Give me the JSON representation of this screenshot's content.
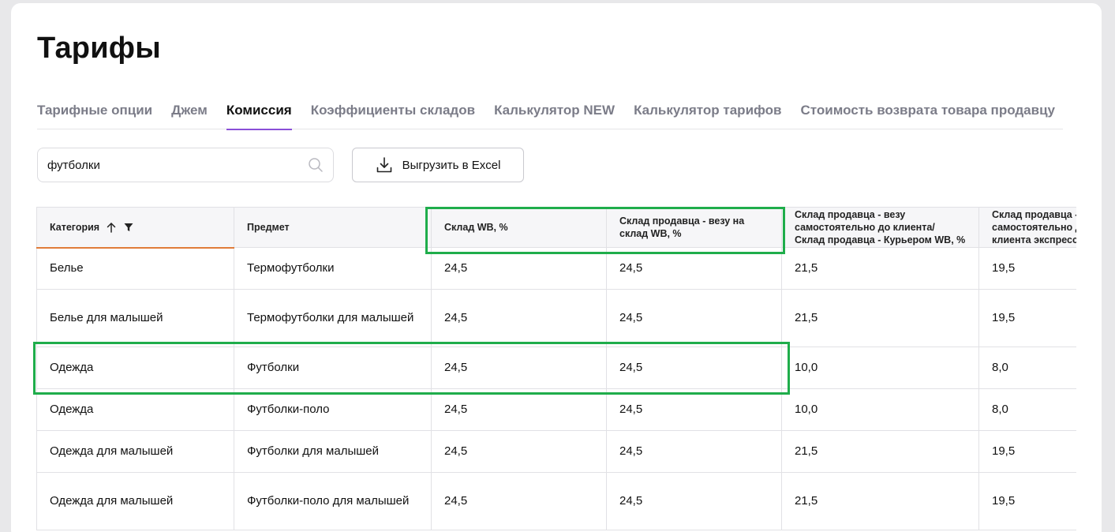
{
  "page": {
    "title": "Тарифы"
  },
  "tabs": [
    {
      "label": "Тарифные опции",
      "active": false
    },
    {
      "label": "Джем",
      "active": false
    },
    {
      "label": "Комиссия",
      "active": true
    },
    {
      "label": "Коэффициенты складов",
      "active": false
    },
    {
      "label": "Калькулятор NEW",
      "active": false
    },
    {
      "label": "Калькулятор тарифов",
      "active": false
    },
    {
      "label": "Стоимость возврата товара продавцу",
      "active": false
    }
  ],
  "search": {
    "value": "футболки",
    "icon": "search-icon"
  },
  "toolbar": {
    "export_label": "Выгрузить в Excel",
    "export_icon": "download-icon"
  },
  "accent_colors": {
    "highlight": "#1fad4b",
    "sort_underline": "#e07c3a",
    "tab_underline": "#8a4fd8"
  },
  "table": {
    "headers": [
      "Категория",
      "Предмет",
      "Склад WB, %",
      "Склад продавца - везу на склад WB, %",
      "Склад продавца - везу самостоятельно до клиента/ Склад продавца - Курьером WB, %",
      "Склад продавца - самостоятельно до клиента экспресс, %"
    ],
    "rows": [
      [
        "Белье",
        "Термофутболки",
        "24,5",
        "24,5",
        "21,5",
        "19,5"
      ],
      [
        "Белье для малышей",
        "Термофутболки для малышей",
        "24,5",
        "24,5",
        "21,5",
        "19,5"
      ],
      [
        "Одежда",
        "Футболки",
        "24,5",
        "24,5",
        "10,0",
        "8,0"
      ],
      [
        "Одежда",
        "Футболки-поло",
        "24,5",
        "24,5",
        "10,0",
        "8,0"
      ],
      [
        "Одежда для малышей",
        "Футболки для малышей",
        "24,5",
        "24,5",
        "21,5",
        "19,5"
      ],
      [
        "Одежда для малышей",
        "Футболки-поло для малышей",
        "24,5",
        "24,5",
        "21,5",
        "19,5"
      ]
    ]
  }
}
